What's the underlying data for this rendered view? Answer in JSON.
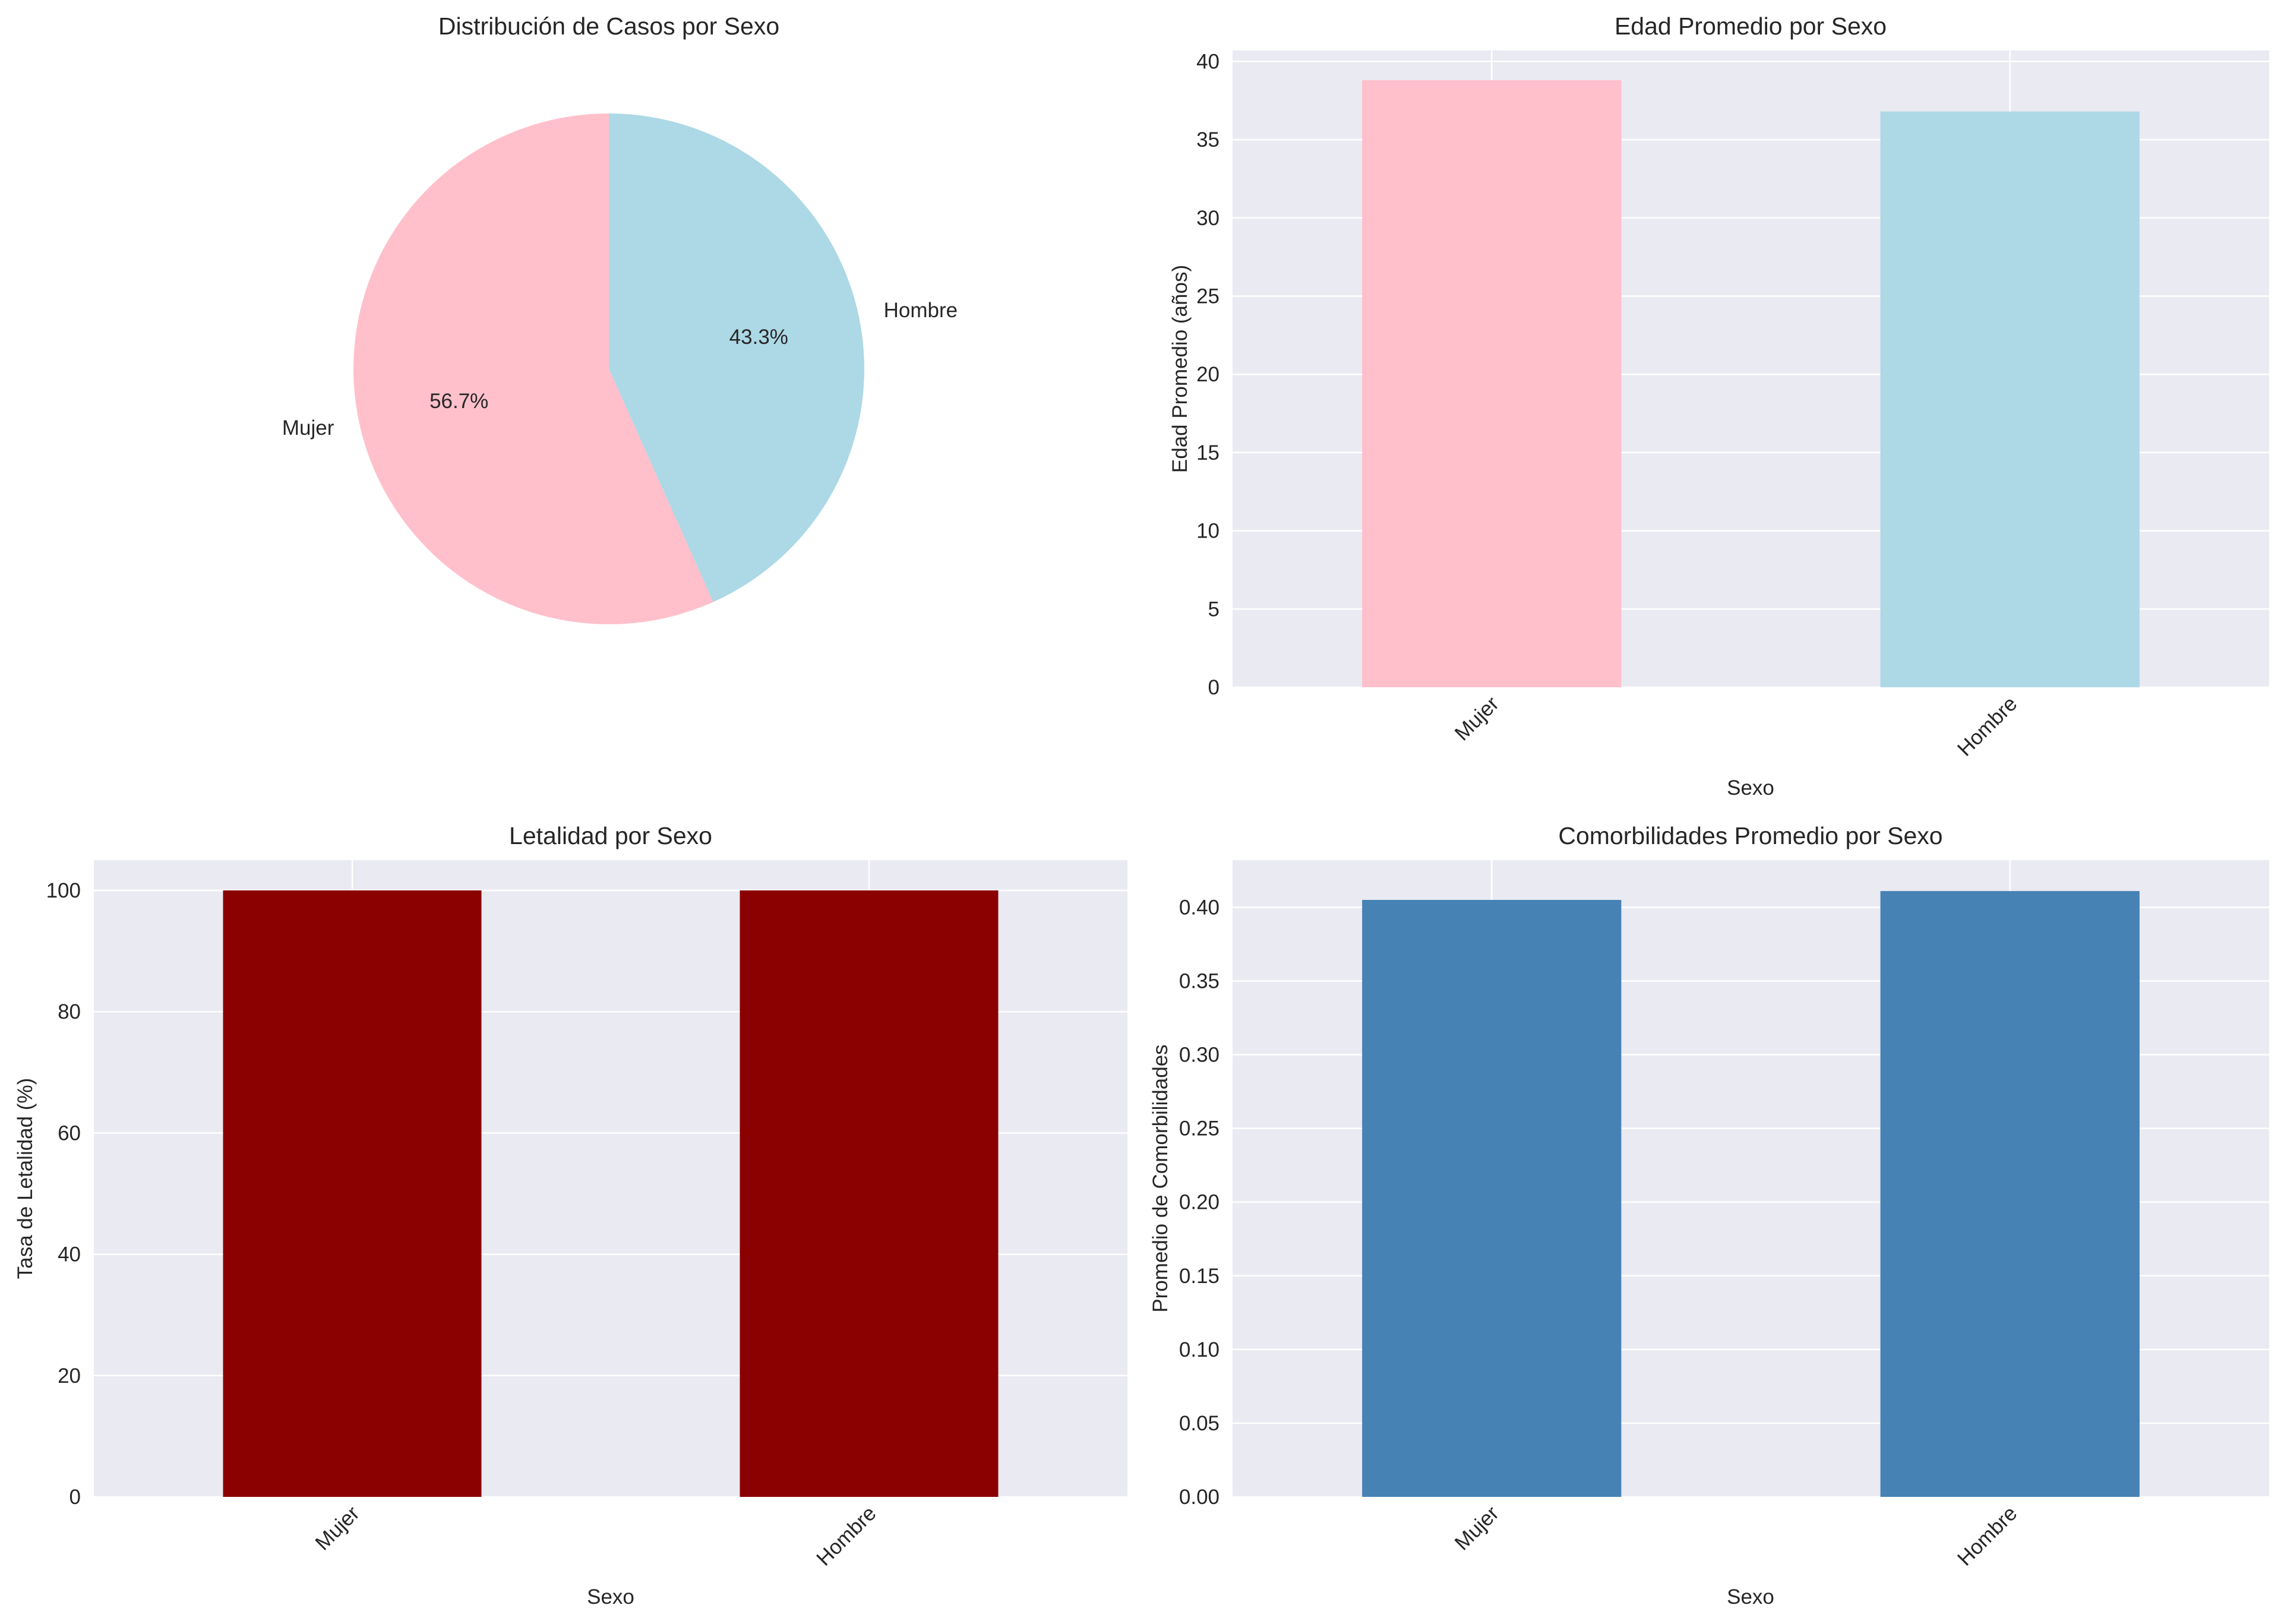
{
  "figure": {
    "background": "#ffffff",
    "axes_background": "#eaeaf2",
    "grid_color": "#ffffff",
    "text_color": "#262626"
  },
  "chart_data": [
    {
      "type": "pie",
      "title": "Distribución de Casos por Sexo",
      "labels": [
        "Mujer",
        "Hombre"
      ],
      "values": [
        56.7,
        43.3
      ],
      "value_labels": [
        "56.7%",
        "43.3%"
      ],
      "colors": [
        "#ffc0cb",
        "#add8e6"
      ],
      "start_angle": 90,
      "grid": false
    },
    {
      "type": "bar",
      "title": "Edad Promedio por Sexo",
      "categories": [
        "Mujer",
        "Hombre"
      ],
      "values": [
        38.8,
        36.8
      ],
      "colors": [
        "#ffc0cb",
        "#add8e6"
      ],
      "xlabel": "Sexo",
      "ylabel": "Edad Promedio (años)",
      "ylim": [
        0,
        40.7
      ],
      "yticks": [
        0,
        5,
        10,
        15,
        20,
        25,
        30,
        35,
        40
      ],
      "ytick_labels": [
        "0",
        "5",
        "10",
        "15",
        "20",
        "25",
        "30",
        "35",
        "40"
      ],
      "grid": true
    },
    {
      "type": "bar",
      "title": "Letalidad por Sexo",
      "categories": [
        "Mujer",
        "Hombre"
      ],
      "values": [
        100,
        100
      ],
      "colors": [
        "#8b0000",
        "#8b0000"
      ],
      "xlabel": "Sexo",
      "ylabel": "Tasa de Letalidad (%)",
      "ylim": [
        0,
        105
      ],
      "yticks": [
        0,
        20,
        40,
        60,
        80,
        100
      ],
      "ytick_labels": [
        "0",
        "20",
        "40",
        "60",
        "80",
        "100"
      ],
      "grid": true
    },
    {
      "type": "bar",
      "title": "Comorbilidades Promedio por Sexo",
      "categories": [
        "Mujer",
        "Hombre"
      ],
      "values": [
        0.405,
        0.411
      ],
      "colors": [
        "#4682b4",
        "#4682b4"
      ],
      "xlabel": "Sexo",
      "ylabel": "Promedio de Comorbilidades",
      "ylim": [
        0,
        0.432
      ],
      "yticks": [
        0,
        0.05,
        0.1,
        0.15,
        0.2,
        0.25,
        0.3,
        0.35,
        0.4
      ],
      "ytick_labels": [
        "0.00",
        "0.05",
        "0.10",
        "0.15",
        "0.20",
        "0.25",
        "0.30",
        "0.35",
        "0.40"
      ],
      "grid": true
    }
  ]
}
